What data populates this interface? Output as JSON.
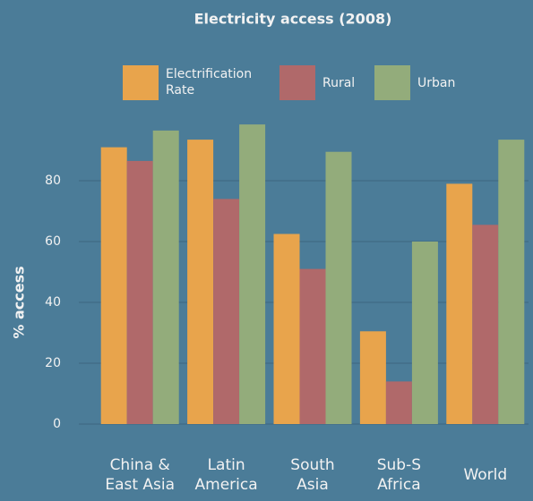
{
  "chart_data": {
    "type": "bar",
    "title": "Electricity access (2008)",
    "ylabel": "% access",
    "categories": [
      "China & East Asia",
      "Latin America",
      "South Asia",
      "Sub-S Africa",
      "World"
    ],
    "series": [
      {
        "name": "Electrification Rate",
        "color": "#e8a44c",
        "values": [
          91,
          93.5,
          62.5,
          30.5,
          79
        ]
      },
      {
        "name": "Rural",
        "color": "#b0696a",
        "values": [
          86.5,
          74,
          51,
          14,
          65.5
        ]
      },
      {
        "name": "Urban",
        "color": "#93ac7b",
        "values": [
          96.5,
          98.5,
          89.5,
          60,
          93.5
        ]
      }
    ],
    "ylim": [
      0,
      100
    ],
    "yticks": [
      0,
      20,
      40,
      60,
      80
    ],
    "grid": true
  }
}
